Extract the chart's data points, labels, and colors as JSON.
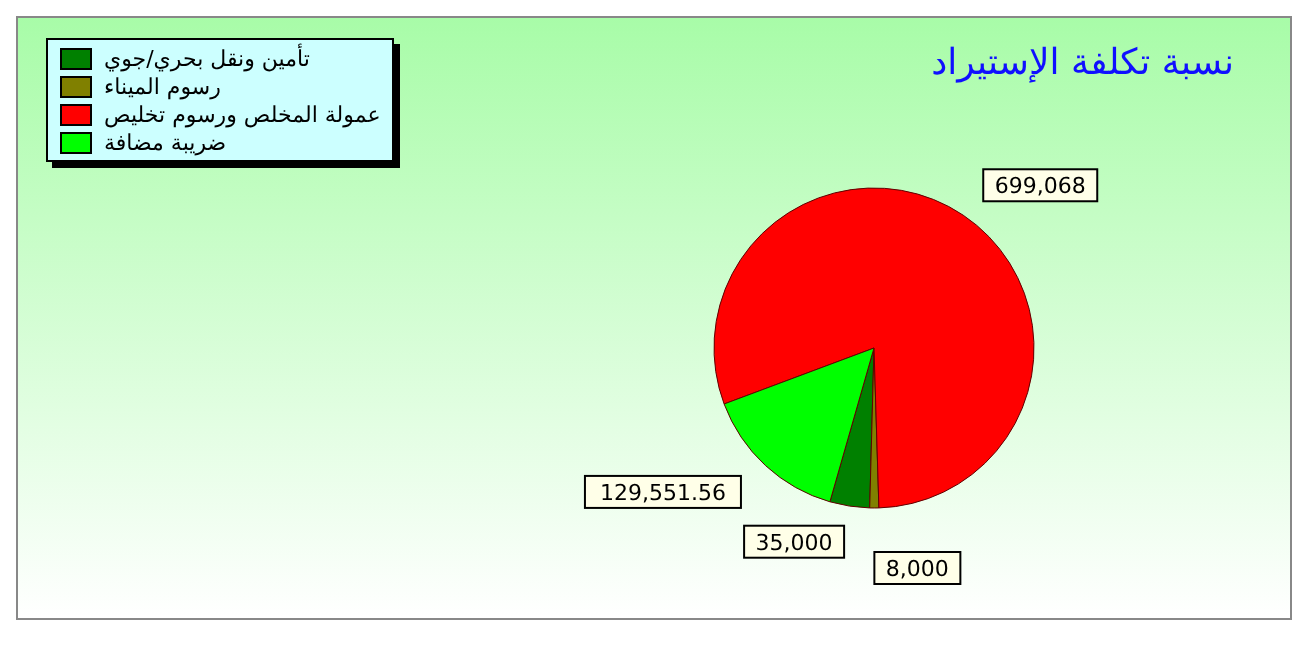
{
  "chart_data": {
    "type": "pie",
    "title": "نسبة تكلفة الإستيراد",
    "categories": [
      "تأمين ونقل بحري/جوي",
      "رسوم الميناء",
      "عمولة المخلص ورسوم تخليص",
      "ضريبة مضافة"
    ],
    "values": [
      35000,
      8000,
      699068,
      129551.56
    ],
    "value_labels": [
      "35,000",
      "8,000",
      "699,068",
      "129,551.56"
    ],
    "colors": [
      "#008000",
      "#808000",
      "#ff0000",
      "#00ff00"
    ],
    "legend": "top left"
  }
}
